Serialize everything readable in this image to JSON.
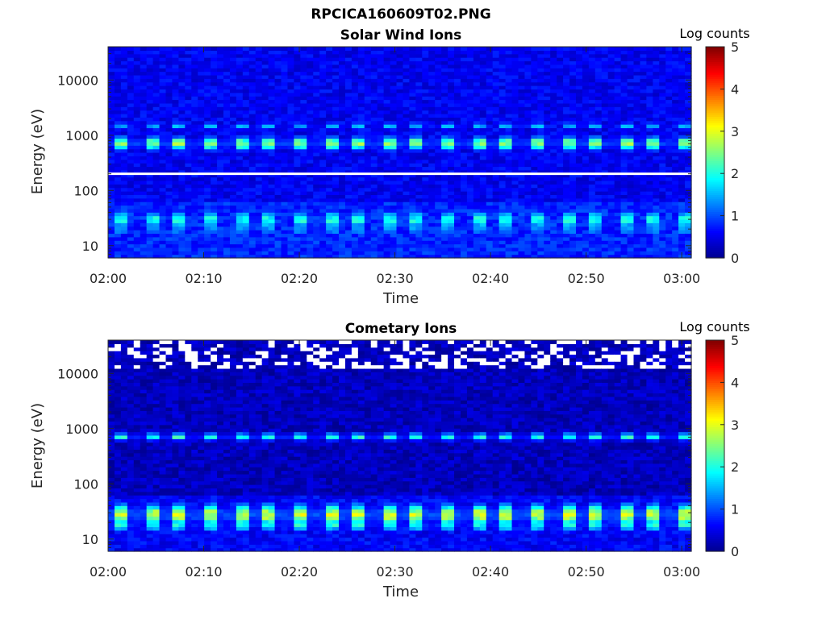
{
  "figure_title": "RPCICA160609T02.PNG",
  "colormap": [
    "#00008f",
    "#0000ff",
    "#0080ff",
    "#00ffff",
    "#80ff80",
    "#ffff00",
    "#ff8000",
    "#ff0000",
    "#800000"
  ],
  "chart_data": [
    {
      "type": "heatmap",
      "title": "Solar Wind Ions",
      "xlabel": "Time",
      "ylabel": "Energy (eV)",
      "x_ticks": [
        "02:00",
        "02:10",
        "02:20",
        "02:30",
        "02:40",
        "02:50",
        "03:00"
      ],
      "x_range": [
        "02:00",
        "03:01"
      ],
      "y_scale": "log",
      "y_range": [
        6,
        40000
      ],
      "y_ticks": [
        {
          "value": 10,
          "label": "10"
        },
        {
          "value": 100,
          "label": "100"
        },
        {
          "value": 1000,
          "label": "1000"
        },
        {
          "value": 10000,
          "label": "10000"
        }
      ],
      "colorbar": {
        "label": "Log counts",
        "range": [
          0,
          5
        ],
        "ticks": [
          "0",
          "1",
          "2",
          "3",
          "4",
          "5"
        ]
      },
      "gap_energy_eV": 200,
      "background_log_counts": 0.55,
      "features": [
        {
          "energy_eV": 720,
          "peak_log_counts": 2.6,
          "width": 0.09
        },
        {
          "energy_eV": 1500,
          "peak_log_counts": 1.5,
          "width": 0.05
        },
        {
          "energy_eV": 30,
          "peak_log_counts": 2.0,
          "width": 0.12
        },
        {
          "energy_eV": 20,
          "peak_log_counts": 1.4,
          "width": 0.08
        }
      ],
      "sweep_period_min": 3.1
    },
    {
      "type": "heatmap",
      "title": "Cometary Ions",
      "xlabel": "Time",
      "ylabel": "Energy (eV)",
      "x_ticks": [
        "02:00",
        "02:10",
        "02:20",
        "02:30",
        "02:40",
        "02:50",
        "03:00"
      ],
      "x_range": [
        "02:00",
        "03:01"
      ],
      "y_scale": "log",
      "y_range": [
        6,
        40000
      ],
      "y_ticks": [
        {
          "value": 10,
          "label": "10"
        },
        {
          "value": 100,
          "label": "100"
        },
        {
          "value": 1000,
          "label": "1000"
        },
        {
          "value": 10000,
          "label": "10000"
        }
      ],
      "colorbar": {
        "label": "Log counts",
        "range": [
          0,
          5
        ],
        "ticks": [
          "0",
          "1",
          "2",
          "3",
          "4",
          "5"
        ]
      },
      "background_log_counts": 0.25,
      "features": [
        {
          "energy_eV": 720,
          "peak_log_counts": 2.1,
          "width": 0.05
        },
        {
          "energy_eV": 28,
          "peak_log_counts": 2.9,
          "width": 0.14
        },
        {
          "energy_eV": 18,
          "peak_log_counts": 2.0,
          "width": 0.08
        }
      ],
      "sweep_period_min": 3.1,
      "missing_data_above_eV": 12000
    }
  ]
}
